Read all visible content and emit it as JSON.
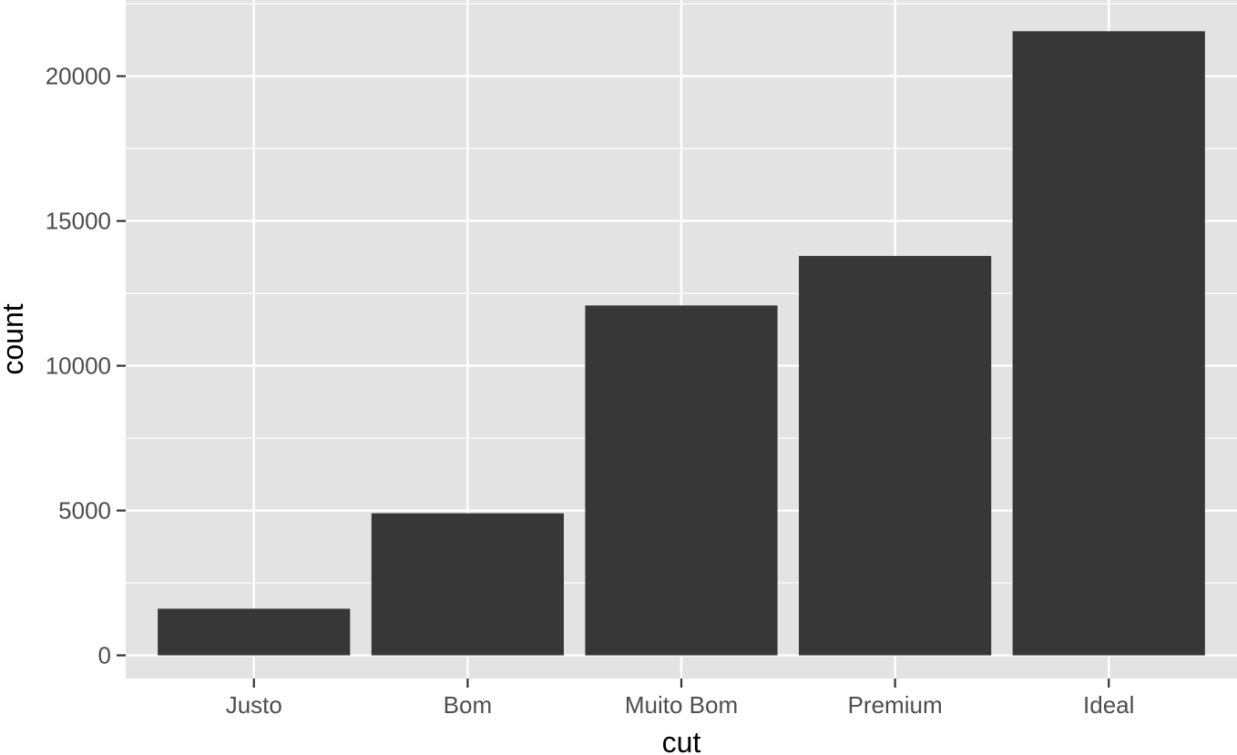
{
  "chart_data": {
    "type": "bar",
    "categories": [
      "Justo",
      "Bom",
      "Muito Bom",
      "Premium",
      "Ideal"
    ],
    "values": [
      1610,
      4906,
      12082,
      13791,
      21551
    ],
    "title": "",
    "xlabel": "cut",
    "ylabel": "count",
    "ylim": [
      -800,
      22630
    ],
    "yticks": [
      0,
      5000,
      10000,
      15000,
      20000
    ],
    "ytick_labels": [
      "0",
      "5000",
      "10000",
      "15000",
      "20000"
    ],
    "grid": true,
    "legend": "none"
  },
  "colors": {
    "panel_background": "#e3e3e3",
    "grid_line": "#ffffff",
    "bar_fill": "#373737",
    "tick_mark": "#333333",
    "tick_label": "#4d4d4d",
    "axis_title": "#000000"
  }
}
